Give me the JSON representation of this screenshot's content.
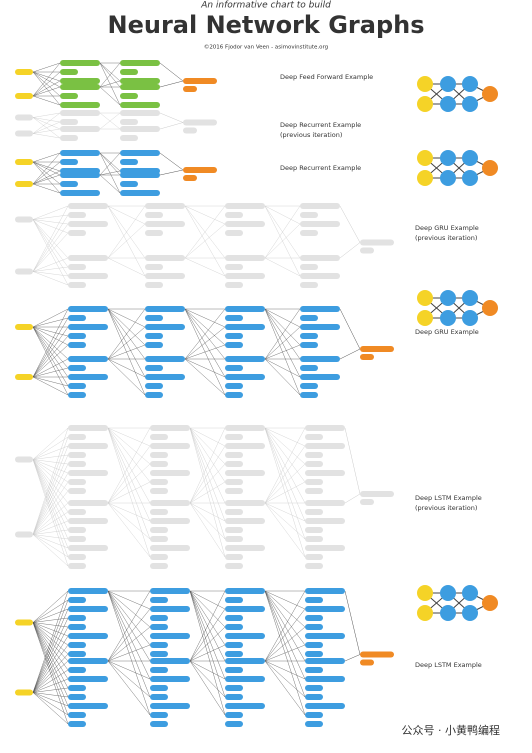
{
  "header": {
    "subtitle": "An informative chart to build",
    "title": "Neural Network Graphs",
    "credit": "©2016 Fjodor van Veen - asimovinstitute.org"
  },
  "sections": [
    {
      "title": "Deep Feed Forward Example"
    },
    {
      "title": "Deep Recurrent Example",
      "note": "(previous iteration)"
    },
    {
      "title": "Deep Recurrent Example"
    },
    {
      "title": "Deep GRU Example",
      "note": "(previous iteration)"
    },
    {
      "title": "Deep GRU Example"
    },
    {
      "title": "Deep LSTM Example",
      "note": "(previous iteration)"
    },
    {
      "title": "Deep LSTM Example"
    }
  ],
  "watermark": "公众号 · 小黄鸭编程"
}
